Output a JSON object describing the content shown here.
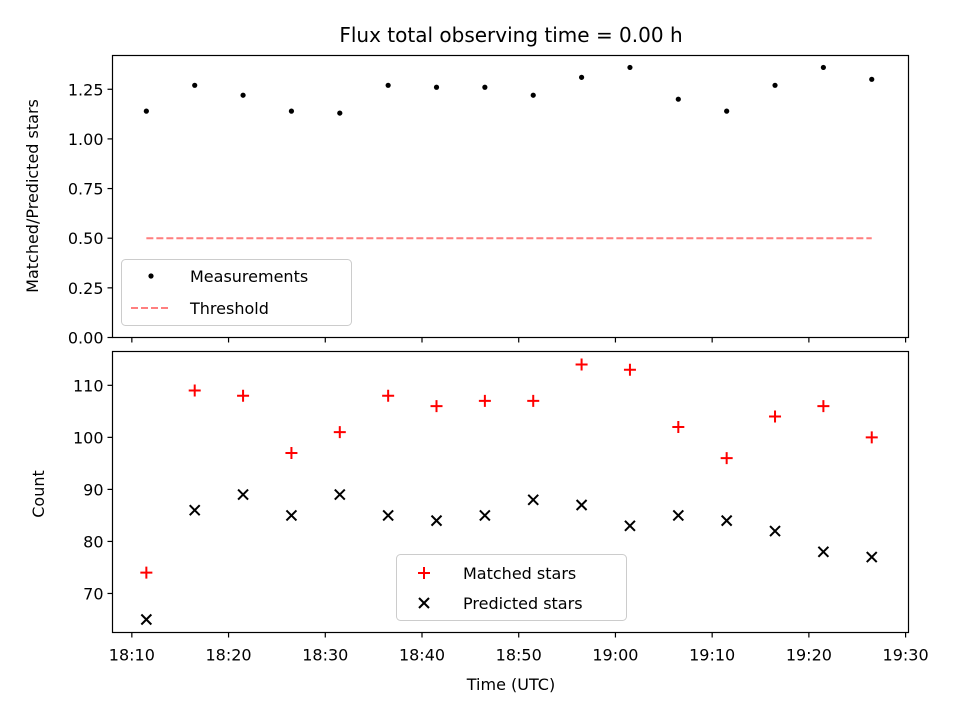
{
  "chart_data": [
    {
      "type": "scatter",
      "title": "Flux total observing time = 0.00 h",
      "xlabel": "",
      "ylabel": "Matched/Predicted stars",
      "ylim": [
        0.0,
        1.42
      ],
      "yticks": [
        0.0,
        0.25,
        0.5,
        0.75,
        1.0,
        1.25
      ],
      "ytick_labels": [
        "0.00",
        "0.25",
        "0.50",
        "0.75",
        "1.00",
        "1.25"
      ],
      "x": [
        11.5,
        16.5,
        21.5,
        26.5,
        31.5,
        36.5,
        41.5,
        46.5,
        51.5,
        56.5,
        61.5,
        66.5,
        71.5,
        76.5,
        81.5,
        86.5
      ],
      "series": [
        {
          "name": "Measurements",
          "marker": "dot",
          "color": "#000000",
          "values": [
            1.14,
            1.27,
            1.22,
            1.14,
            1.13,
            1.27,
            1.26,
            1.26,
            1.22,
            1.31,
            1.36,
            1.2,
            1.14,
            1.27,
            1.36,
            1.3
          ]
        },
        {
          "name": "Threshold",
          "marker": "dashed-line",
          "color": "#ff7f7f",
          "x_range": [
            11.5,
            86.5
          ],
          "value": 0.5
        }
      ],
      "legend": "lower-left"
    },
    {
      "type": "scatter",
      "title": "",
      "xlabel": "Time (UTC)",
      "ylabel": "Count",
      "ylim": [
        62.5,
        116.5
      ],
      "yticks": [
        70,
        80,
        90,
        100,
        110
      ],
      "ytick_labels": [
        "70",
        "80",
        "90",
        "100",
        "110"
      ],
      "x": [
        11.5,
        16.5,
        21.5,
        26.5,
        31.5,
        36.5,
        41.5,
        46.5,
        51.5,
        56.5,
        61.5,
        66.5,
        71.5,
        76.5,
        81.5,
        86.5
      ],
      "series": [
        {
          "name": "Matched stars",
          "marker": "plus",
          "color": "#ff0000",
          "values": [
            74,
            109,
            108,
            97,
            101,
            108,
            106,
            107,
            107,
            114,
            113,
            102,
            96,
            104,
            106,
            100
          ]
        },
        {
          "name": "Predicted stars",
          "marker": "x",
          "color": "#000000",
          "values": [
            65,
            86,
            89,
            85,
            89,
            85,
            84,
            85,
            88,
            87,
            83,
            85,
            84,
            82,
            78,
            77
          ]
        }
      ],
      "legend": "lower-center"
    }
  ],
  "x_axis": {
    "unit": "minutes after 18:00 UTC",
    "xlim": [
      8.0,
      90.3
    ],
    "ticks": [
      10,
      20,
      30,
      40,
      50,
      60,
      70,
      80,
      90
    ],
    "tick_labels": [
      "18:10",
      "18:20",
      "18:30",
      "18:40",
      "18:50",
      "19:00",
      "19:10",
      "19:20",
      "19:30"
    ]
  }
}
